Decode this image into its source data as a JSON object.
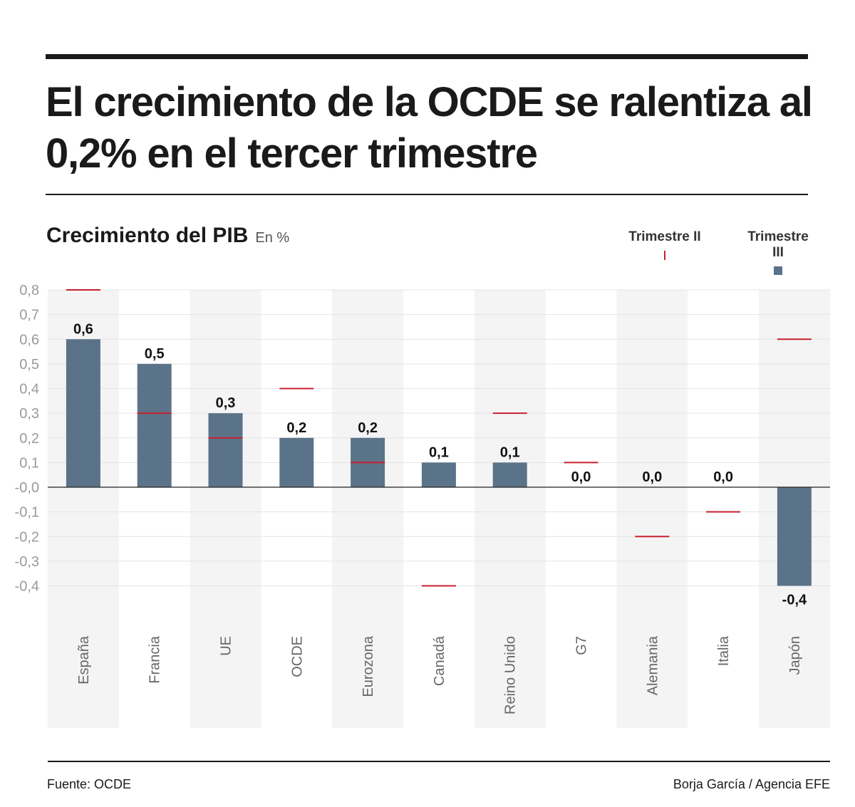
{
  "title": "El crecimiento de la OCDE se ralentiza al 0,2% en el tercer trimestre",
  "subtitle": "Crecimiento del PIB",
  "unit": "En %",
  "footer": {
    "source": "Fuente: OCDE",
    "credit": "Borja García / Agencia EFE"
  },
  "colors": {
    "trimestre_iii": "#5b7389",
    "trimestre_ii": "#c8202f",
    "band": "#f4f4f4"
  },
  "chart_data": {
    "type": "bar",
    "title": "Crecimiento del PIB",
    "ylabel": "En %",
    "ylim": [
      -0.4,
      0.8
    ],
    "yticks": [
      "0,8",
      "0,7",
      "0,6",
      "0,5",
      "0,4",
      "0,3",
      "0,2",
      "0,1",
      "-0,0",
      "-0,1",
      "-0,2",
      "-0,3",
      "-0,4"
    ],
    "ytick_values": [
      0.8,
      0.7,
      0.6,
      0.5,
      0.4,
      0.3,
      0.2,
      0.1,
      0,
      -0.1,
      -0.2,
      -0.3,
      -0.4
    ],
    "grid": true,
    "legend_placement": "top-right",
    "categories": [
      "España",
      "Francia",
      "UE",
      "OCDE",
      "Eurozona",
      "Canadá",
      "Reino Unido",
      "G7",
      "Alemania",
      "Italia",
      "Japón"
    ],
    "series": [
      {
        "name": "Trimestre II",
        "mark": "line",
        "values": [
          0.8,
          0.3,
          0.2,
          0.4,
          0.1,
          -0.4,
          0.3,
          0.1,
          -0.2,
          -0.1,
          0.6
        ]
      },
      {
        "name": "Trimestre III",
        "mark": "bar",
        "values": [
          0.6,
          0.5,
          0.3,
          0.2,
          0.2,
          0.1,
          0.1,
          0.0,
          0.0,
          0.0,
          -0.4
        ],
        "labels": [
          "0,6",
          "0,5",
          "0,3",
          "0,2",
          "0,2",
          "0,1",
          "0,1",
          "0,0",
          "0,0",
          "0,0",
          "-0,4"
        ]
      }
    ]
  }
}
